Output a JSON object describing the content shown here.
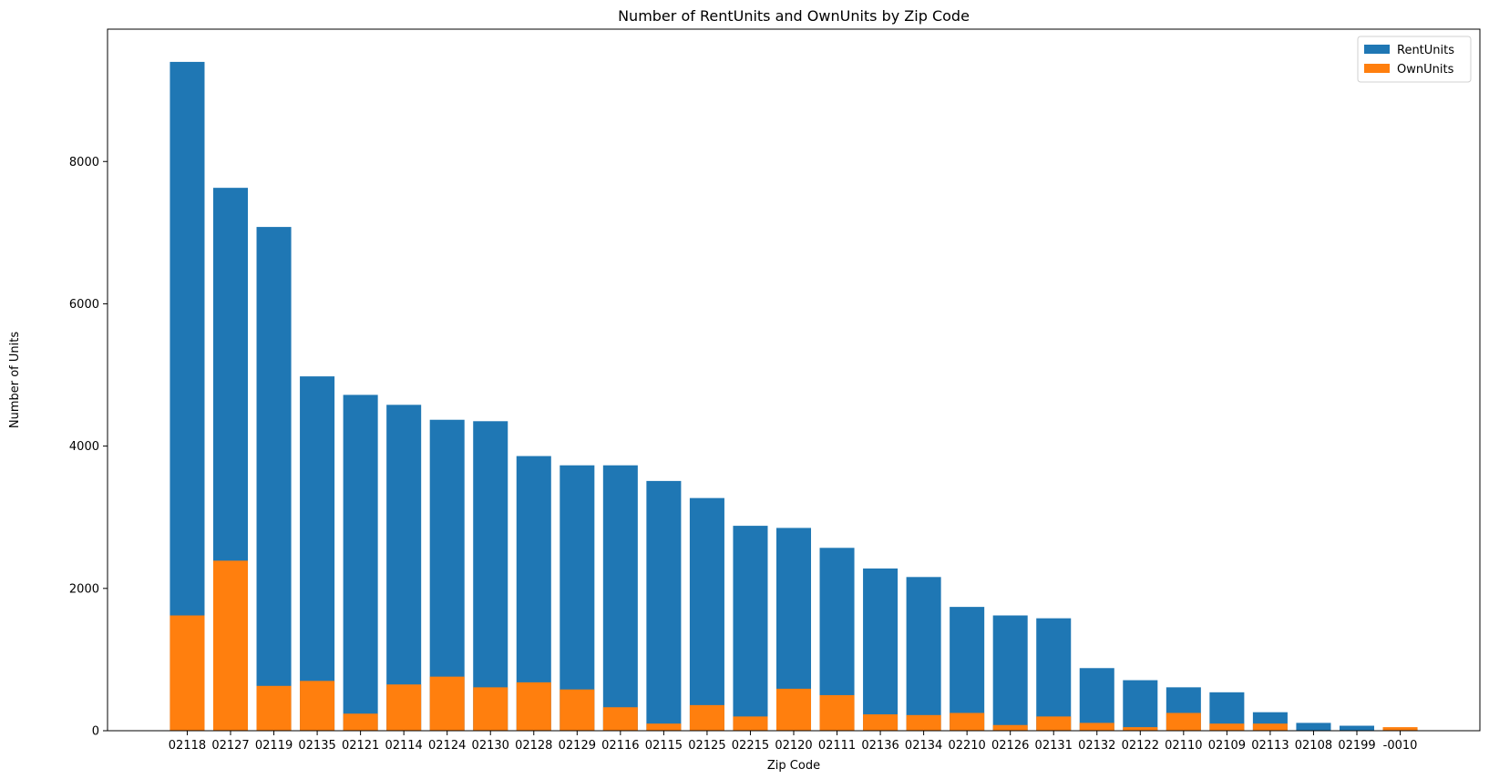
{
  "chart_data": {
    "type": "bar",
    "stacked": false,
    "title": "Number of RentUnits and OwnUnits by Zip Code",
    "xlabel": "Zip Code",
    "ylabel": "Number of Units",
    "ylim": [
      0,
      9860
    ],
    "yticks": [
      0,
      2000,
      4000,
      6000,
      8000
    ],
    "legend_position": "top-right",
    "categories": [
      "02118",
      "02127",
      "02119",
      "02135",
      "02121",
      "02114",
      "02124",
      "02130",
      "02128",
      "02129",
      "02116",
      "02115",
      "02125",
      "02215",
      "02120",
      "02111",
      "02136",
      "02134",
      "02210",
      "02126",
      "02131",
      "02132",
      "02122",
      "02110",
      "02109",
      "02113",
      "02108",
      "02199",
      "-0010"
    ],
    "series": [
      {
        "name": "RentUnits",
        "color": "#1f77b4",
        "values": [
          9400,
          7630,
          7080,
          4980,
          4720,
          4580,
          4370,
          4350,
          3860,
          3730,
          3730,
          3510,
          3270,
          2880,
          2850,
          2570,
          2280,
          2160,
          1740,
          1620,
          1580,
          880,
          710,
          610,
          540,
          260,
          110,
          70,
          30
        ]
      },
      {
        "name": "OwnUnits",
        "color": "#ff7f0e",
        "values": [
          1620,
          2390,
          630,
          700,
          240,
          650,
          760,
          610,
          680,
          580,
          330,
          100,
          360,
          200,
          590,
          500,
          230,
          220,
          250,
          80,
          200,
          110,
          50,
          250,
          100,
          100,
          0,
          0,
          50
        ]
      }
    ]
  }
}
